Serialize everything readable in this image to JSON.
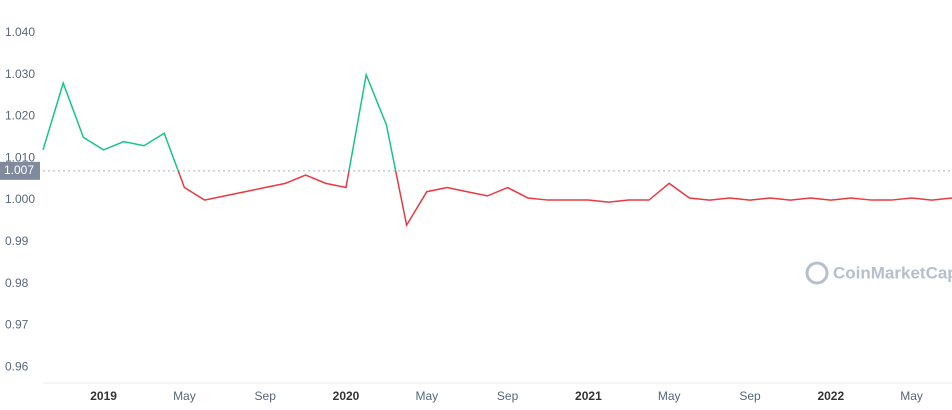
{
  "chart_data": {
    "type": "line",
    "x": [
      "2018-10",
      "2018-11",
      "2018-12",
      "2019-01",
      "2019-02",
      "2019-03",
      "2019-04",
      "2019-05",
      "2019-06",
      "2019-07",
      "2019-08",
      "2019-09",
      "2019-10",
      "2019-11",
      "2019-12",
      "2020-01",
      "2020-02",
      "2020-03",
      "2020-04",
      "2020-05",
      "2020-06",
      "2020-07",
      "2020-08",
      "2020-09",
      "2020-10",
      "2020-11",
      "2020-12",
      "2021-01",
      "2021-02",
      "2021-03",
      "2021-04",
      "2021-05",
      "2021-06",
      "2021-07",
      "2021-08",
      "2021-09",
      "2021-10",
      "2021-11",
      "2021-12",
      "2022-01",
      "2022-02",
      "2022-03",
      "2022-04",
      "2022-05",
      "2022-06",
      "2022-07"
    ],
    "values": [
      1.012,
      1.028,
      1.015,
      1.012,
      1.014,
      1.013,
      1.016,
      1.003,
      1.0,
      1.001,
      1.002,
      1.003,
      1.004,
      1.006,
      1.004,
      1.003,
      1.03,
      1.018,
      0.994,
      1.002,
      1.003,
      1.002,
      1.001,
      1.003,
      1.0005,
      1.0,
      1.0,
      1.0,
      0.9995,
      1.0,
      1.0,
      1.004,
      1.0005,
      1.0,
      1.0005,
      1.0,
      1.0005,
      1.0,
      1.0005,
      1.0,
      1.0005,
      1.0,
      1.0,
      1.0005,
      1.0,
      1.0005
    ],
    "xlim": [
      "2018-10",
      "2022-07"
    ],
    "xticks": [
      {
        "value": "2019-01",
        "label": "2019"
      },
      {
        "value": "2019-05",
        "label": "May"
      },
      {
        "value": "2019-09",
        "label": "Sep"
      },
      {
        "value": "2020-01",
        "label": "2020"
      },
      {
        "value": "2020-05",
        "label": "May"
      },
      {
        "value": "2020-09",
        "label": "Sep"
      },
      {
        "value": "2021-01",
        "label": "2021"
      },
      {
        "value": "2021-05",
        "label": "May"
      },
      {
        "value": "2021-09",
        "label": "Sep"
      },
      {
        "value": "2022-01",
        "label": "2022"
      },
      {
        "value": "2022-05",
        "label": "May"
      }
    ],
    "ylim": [
      0.9562,
      1.0479
    ],
    "yticks": [
      {
        "value": 1.04,
        "label": "1.040"
      },
      {
        "value": 1.03,
        "label": "1.030"
      },
      {
        "value": 1.02,
        "label": "1.020"
      },
      {
        "value": 1.01,
        "label": "1.010"
      },
      {
        "value": 1.0,
        "label": "1.000"
      },
      0.99,
      0.98,
      0.97,
      0.96
    ],
    "baseline": 1.007,
    "colors": {
      "above": "#16c784",
      "below": "#ea3943"
    },
    "watermark": "CoinMarketCap"
  }
}
